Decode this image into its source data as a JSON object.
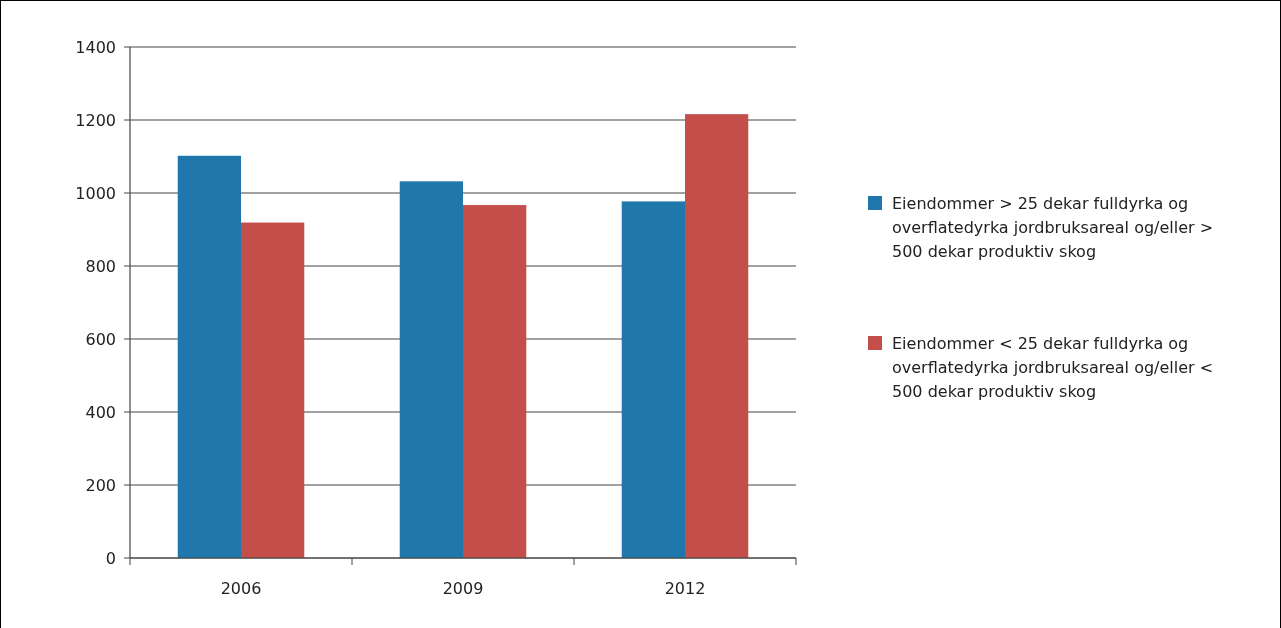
{
  "chart_data": {
    "type": "bar",
    "categories": [
      "2006",
      "2009",
      "2012"
    ],
    "series": [
      {
        "name": "Eiendommer > 25 dekar fulldyrka og overflatedyrka jordbruksareal og/eller > 500 dekar produktiv skog",
        "color": "#1f77ab",
        "values": [
          1102,
          1032,
          977
        ]
      },
      {
        "name": "Eiendommer < 25 dekar fulldyrka og overflatedyrka jordbruksareal og/eller < 500 dekar produktiv skog",
        "color": "#c44e4a",
        "values": [
          919,
          967,
          1216
        ]
      }
    ],
    "ylim": [
      0,
      1400
    ],
    "yticks": [
      0,
      200,
      400,
      600,
      800,
      1000,
      1200,
      1400
    ],
    "grid": "y",
    "legend": "right"
  }
}
